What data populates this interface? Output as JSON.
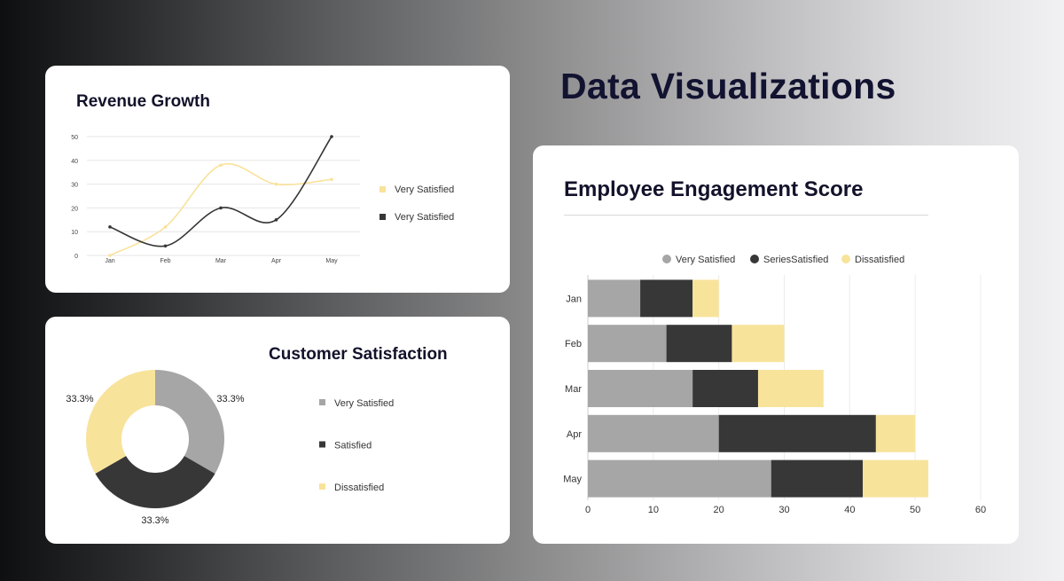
{
  "page": {
    "title": "Data Visualizations"
  },
  "colors": {
    "gray": "#a6a6a6",
    "dark": "#373737",
    "yellow": "#f8e39b",
    "line_yellow": "#f9e29b",
    "line_dark": "#363636",
    "grid": "#e6e6e6",
    "text": "#13122b",
    "axis_text": "#444444"
  },
  "chart_data": [
    {
      "id": "revenue",
      "type": "line",
      "title": "Revenue Growth",
      "categories": [
        "Jan",
        "Feb",
        "Mar",
        "Apr",
        "May"
      ],
      "ylim": [
        0,
        50
      ],
      "yticks": [
        0,
        10,
        20,
        30,
        40,
        50
      ],
      "series": [
        {
          "name": "Very Satisfied",
          "color": "#f9e29b",
          "values": [
            0,
            12,
            38,
            30,
            32
          ]
        },
        {
          "name": "Very Satisfied",
          "color": "#363636",
          "values": [
            12,
            4,
            20,
            15,
            50
          ]
        }
      ],
      "legend": [
        "Very Satisfied",
        "Very Satisfied"
      ],
      "legend_position": "right",
      "xlabel": "",
      "ylabel": ""
    },
    {
      "id": "satisfaction",
      "type": "pie",
      "title": "Customer Satisfaction",
      "labels": [
        "Very Satisfied",
        "Satisfied",
        "Dissatisfied"
      ],
      "values": [
        33.3,
        33.3,
        33.3
      ],
      "value_labels": [
        "33.3%",
        "33.3%",
        "33.3%"
      ],
      "colors": [
        "#a6a6a6",
        "#373737",
        "#f8e39b"
      ],
      "donut": true,
      "legend_position": "right"
    },
    {
      "id": "engagement",
      "type": "bar",
      "orientation": "horizontal",
      "stacked": true,
      "title": "Employee Engagement Score",
      "categories": [
        "Jan",
        "Feb",
        "Mar",
        "Apr",
        "May"
      ],
      "series": [
        {
          "name": "Very Satisfied",
          "color": "#a6a6a6",
          "values": [
            8,
            12,
            16,
            20,
            28
          ]
        },
        {
          "name": "SeriesSatisfied",
          "color": "#373737",
          "values": [
            8,
            10,
            10,
            24,
            14
          ]
        },
        {
          "name": "Dissatisfied",
          "color": "#f8e39b",
          "values": [
            4,
            8,
            10,
            6,
            10
          ]
        }
      ],
      "xlim": [
        0,
        60
      ],
      "xticks": [
        0,
        10,
        20,
        30,
        40,
        50,
        60
      ],
      "legend_position": "top",
      "xlabel": "",
      "ylabel": ""
    }
  ]
}
